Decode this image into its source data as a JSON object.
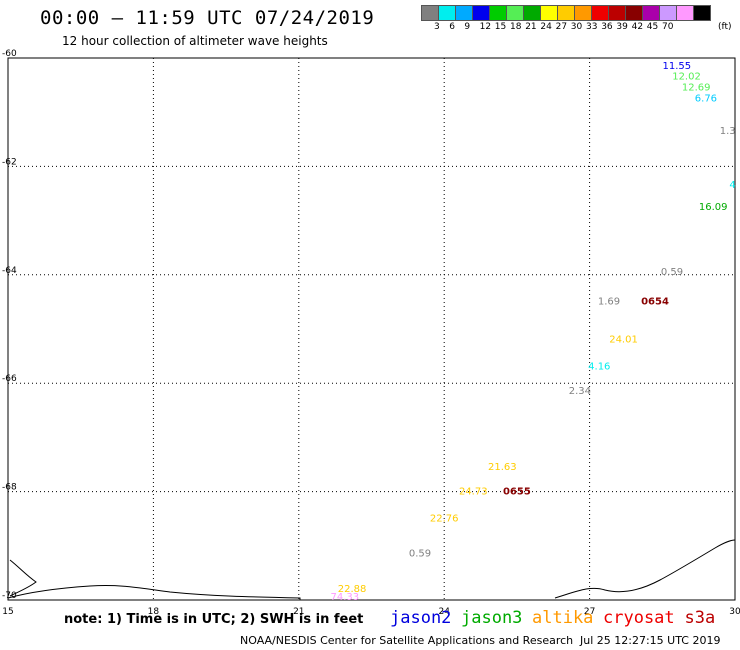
{
  "header": {
    "title": "00:00 – 11:59 UTC 07/24/2019",
    "subtitle": "12 hour collection of altimeter wave heights"
  },
  "colorbar": {
    "unit": "(ft)",
    "levels": [
      "3",
      "6",
      "9",
      "12",
      "15",
      "18",
      "21",
      "24",
      "27",
      "30",
      "33",
      "36",
      "39",
      "42",
      "45",
      "70"
    ],
    "colors": [
      "#808080",
      "#00eeee",
      "#00aaff",
      "#0000ee",
      "#00cc00",
      "#55ee55",
      "#00aa00",
      "#ffff00",
      "#ffcc00",
      "#ff9900",
      "#ee0000",
      "#bb0000",
      "#880000",
      "#aa00aa",
      "#cc99ff",
      "#ff99ff",
      "#000000"
    ]
  },
  "chart_data": {
    "type": "scatter",
    "xlabel": "",
    "ylabel": "",
    "xlim": [
      15,
      30
    ],
    "ylim": [
      -70,
      -60
    ],
    "x_ticks": [
      "15",
      "18",
      "21",
      "24",
      "27",
      "30"
    ],
    "y_ticks": [
      "-60",
      "-62",
      "-64",
      "-66",
      "-68",
      "-70"
    ],
    "grid": true,
    "labels": [
      {
        "lon": 28.8,
        "lat": -60.2,
        "text": "11.55",
        "color": "#0000ee"
      },
      {
        "lon": 29.0,
        "lat": -60.4,
        "text": "12.02",
        "color": "#55ee55"
      },
      {
        "lon": 29.2,
        "lat": -60.6,
        "text": "12.69",
        "color": "#55ee55"
      },
      {
        "lon": 29.4,
        "lat": -60.8,
        "text": "6.76",
        "color": "#00ccff"
      },
      {
        "lon": 29.85,
        "lat": -61.4,
        "text": "1.3",
        "color": "#808080"
      },
      {
        "lon": 29.95,
        "lat": -62.4,
        "text": "4",
        "color": "#00eeee"
      },
      {
        "lon": 29.55,
        "lat": -62.8,
        "text": "16.09",
        "color": "#00aa00"
      },
      {
        "lon": 28.7,
        "lat": -64.0,
        "text": "0.59",
        "color": "#808080"
      },
      {
        "lon": 28.35,
        "lat": -64.55,
        "text": "0654",
        "color": "#880000"
      },
      {
        "lon": 27.4,
        "lat": -64.55,
        "text": "1.69",
        "color": "#808080"
      },
      {
        "lon": 27.7,
        "lat": -65.25,
        "text": "24.01",
        "color": "#ffcc00"
      },
      {
        "lon": 27.2,
        "lat": -65.75,
        "text": "4.16",
        "color": "#00eeee"
      },
      {
        "lon": 26.8,
        "lat": -66.2,
        "text": "2.34",
        "color": "#808080"
      },
      {
        "lon": 25.2,
        "lat": -67.6,
        "text": "21.63",
        "color": "#ffcc00"
      },
      {
        "lon": 24.6,
        "lat": -68.05,
        "text": "24.73",
        "color": "#ffcc00"
      },
      {
        "lon": 25.5,
        "lat": -68.05,
        "text": "0655",
        "color": "#880000"
      },
      {
        "lon": 24.0,
        "lat": -68.55,
        "text": "22.76",
        "color": "#ffcc00"
      },
      {
        "lon": 23.5,
        "lat": -69.2,
        "text": "0.59",
        "color": "#808080"
      },
      {
        "lon": 22.1,
        "lat": -69.85,
        "text": "22.88",
        "color": "#ffcc00"
      },
      {
        "lon": 21.95,
        "lat": -70.0,
        "text": "74.33",
        "color": "#ff99ff"
      }
    ]
  },
  "footer": {
    "note": "note: 1) Time is in UTC; 2) SWH is in feet",
    "satellites": [
      {
        "name": "jason2",
        "color": "#0000dd"
      },
      {
        "name": "jason3",
        "color": "#00aa00"
      },
      {
        "name": "altika",
        "color": "#ff9900"
      },
      {
        "name": "cryosat",
        "color": "#ee0000"
      },
      {
        "name": "s3a",
        "color": "#bb0000"
      }
    ],
    "credit": "NOAA/NESDIS Center for Satellite Applications and Research",
    "timestamp": "Jul 25 12:27:15 UTC 2019"
  }
}
